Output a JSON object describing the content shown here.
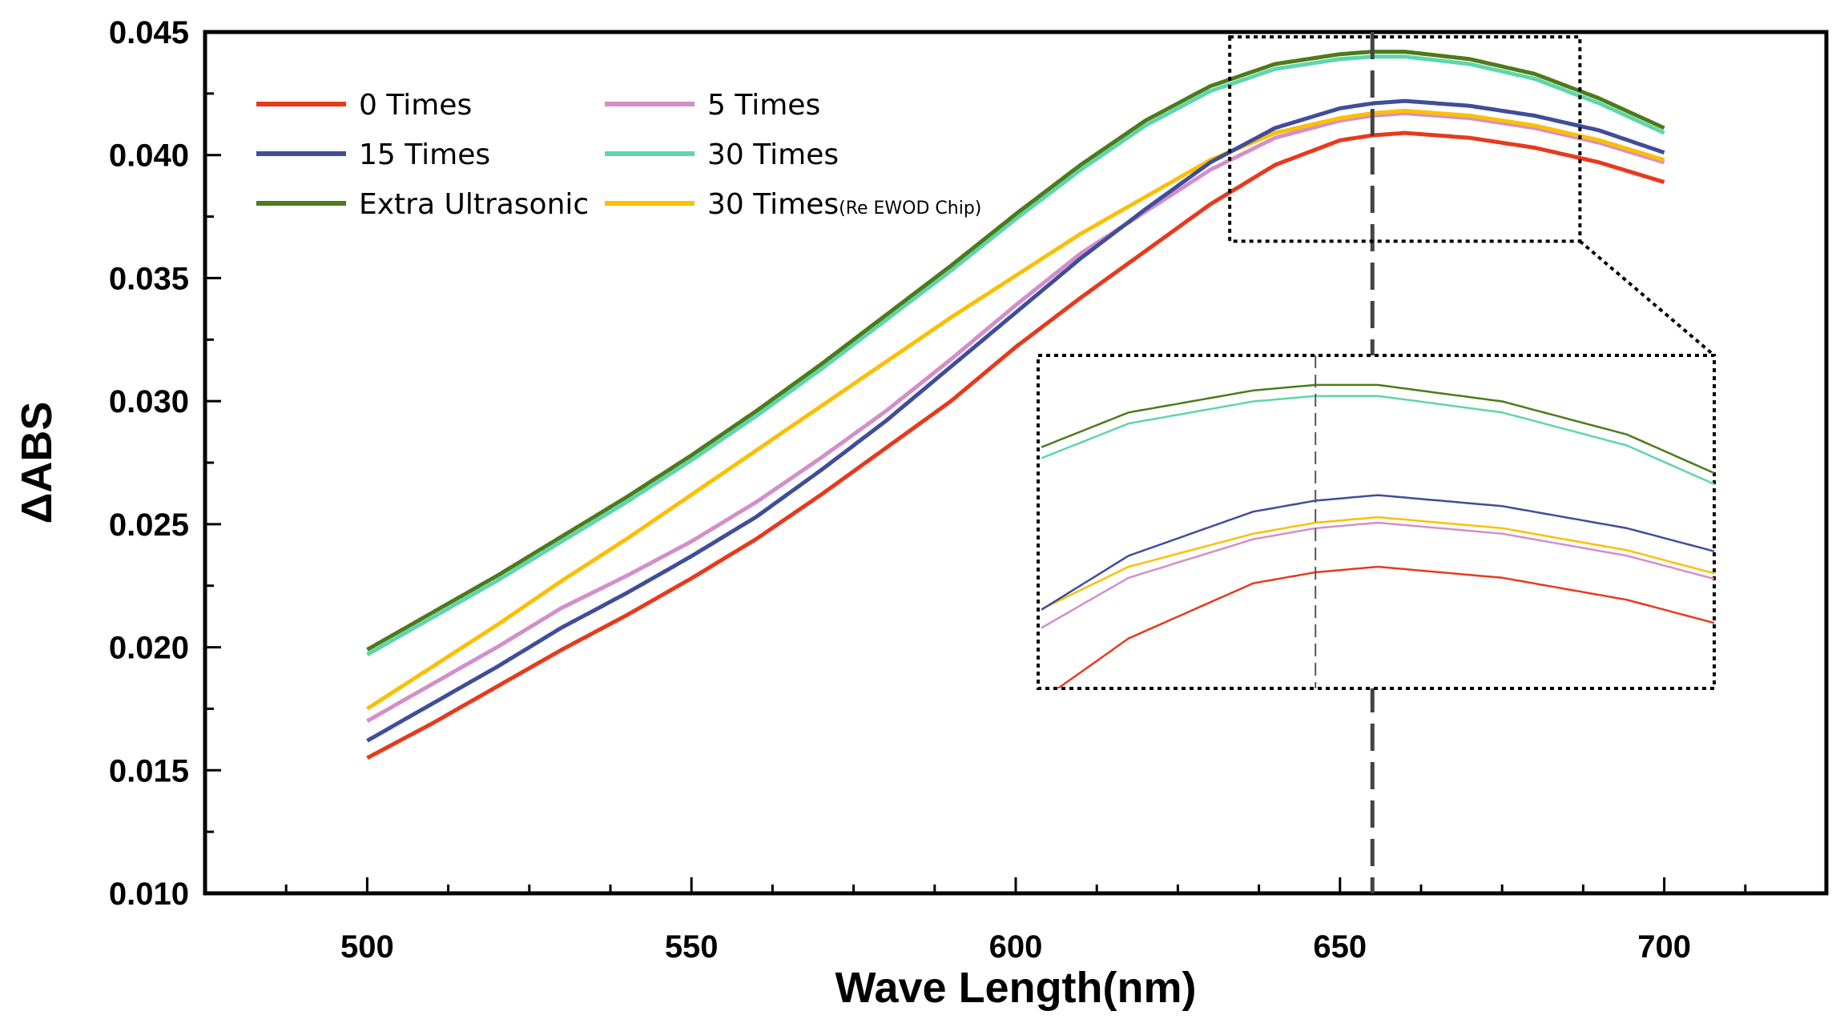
{
  "chart_data": {
    "type": "line",
    "title": "",
    "xlabel": "Wave Length(nm)",
    "ylabel": "ΔABS",
    "xlim": [
      475,
      725
    ],
    "ylim": [
      0.01,
      0.045
    ],
    "x_ticks": [
      "500",
      "550",
      "600",
      "650",
      "700"
    ],
    "y_ticks": [
      "0.010",
      "0.015",
      "0.020",
      "0.025",
      "0.030",
      "0.035",
      "0.040",
      "0.045"
    ],
    "reference_line_x": 655,
    "inset_range": {
      "x": [
        633,
        687
      ],
      "y": [
        0.0365,
        0.0448
      ]
    },
    "x": [
      500,
      510,
      520,
      530,
      540,
      550,
      560,
      570,
      580,
      590,
      600,
      610,
      620,
      630,
      640,
      650,
      655,
      660,
      670,
      680,
      690,
      700
    ],
    "series": [
      {
        "name": "0 Times",
        "sub": "",
        "color": "#e8391d",
        "values": [
          0.0155,
          0.0169,
          0.0184,
          0.0199,
          0.0213,
          0.0228,
          0.0244,
          0.0262,
          0.0281,
          0.03,
          0.0322,
          0.0342,
          0.0361,
          0.038,
          0.0396,
          0.0406,
          0.0408,
          0.0409,
          0.0407,
          0.0403,
          0.0397,
          0.0389
        ]
      },
      {
        "name": "5 Times",
        "sub": "",
        "color": "#d38fc9",
        "values": [
          0.017,
          0.0185,
          0.02,
          0.0216,
          0.0229,
          0.0243,
          0.0259,
          0.0277,
          0.0296,
          0.0317,
          0.0339,
          0.036,
          0.0377,
          0.0394,
          0.0407,
          0.0414,
          0.0416,
          0.0417,
          0.0415,
          0.0411,
          0.0405,
          0.0397
        ]
      },
      {
        "name": "15 Times",
        "sub": "",
        "color": "#3f4d9a",
        "values": [
          0.0162,
          0.0177,
          0.0192,
          0.0208,
          0.0222,
          0.0237,
          0.0253,
          0.0272,
          0.0292,
          0.0314,
          0.0336,
          0.0358,
          0.0378,
          0.0397,
          0.0411,
          0.0419,
          0.0421,
          0.0422,
          0.042,
          0.0416,
          0.041,
          0.0401
        ]
      },
      {
        "name": "30 Times",
        "sub": "",
        "color": "#5dd6aa",
        "values": [
          0.0197,
          0.0212,
          0.0227,
          0.0243,
          0.0259,
          0.0276,
          0.0294,
          0.0313,
          0.0333,
          0.0353,
          0.0374,
          0.0394,
          0.0412,
          0.0426,
          0.0435,
          0.0439,
          0.044,
          0.044,
          0.0437,
          0.0431,
          0.0421,
          0.0409
        ]
      },
      {
        "name": "Extra Ultrasonic",
        "sub": "",
        "color": "#4d7a1a",
        "values": [
          0.0199,
          0.0214,
          0.0229,
          0.0245,
          0.0261,
          0.0278,
          0.0296,
          0.0315,
          0.0335,
          0.0355,
          0.0376,
          0.0396,
          0.0414,
          0.0428,
          0.0437,
          0.0441,
          0.0442,
          0.0442,
          0.0439,
          0.0433,
          0.0423,
          0.0411
        ]
      },
      {
        "name": "30 Times",
        "sub": "(Re EWOD Chip)",
        "color": "#fcbf06",
        "values": [
          0.0175,
          0.0192,
          0.0209,
          0.0227,
          0.0244,
          0.0262,
          0.028,
          0.0298,
          0.0316,
          0.0334,
          0.0351,
          0.0368,
          0.0383,
          0.0398,
          0.0409,
          0.0415,
          0.0417,
          0.0418,
          0.0416,
          0.0412,
          0.0406,
          0.0398
        ]
      }
    ],
    "legend": {
      "placement": "top-left",
      "columns": 2
    }
  }
}
